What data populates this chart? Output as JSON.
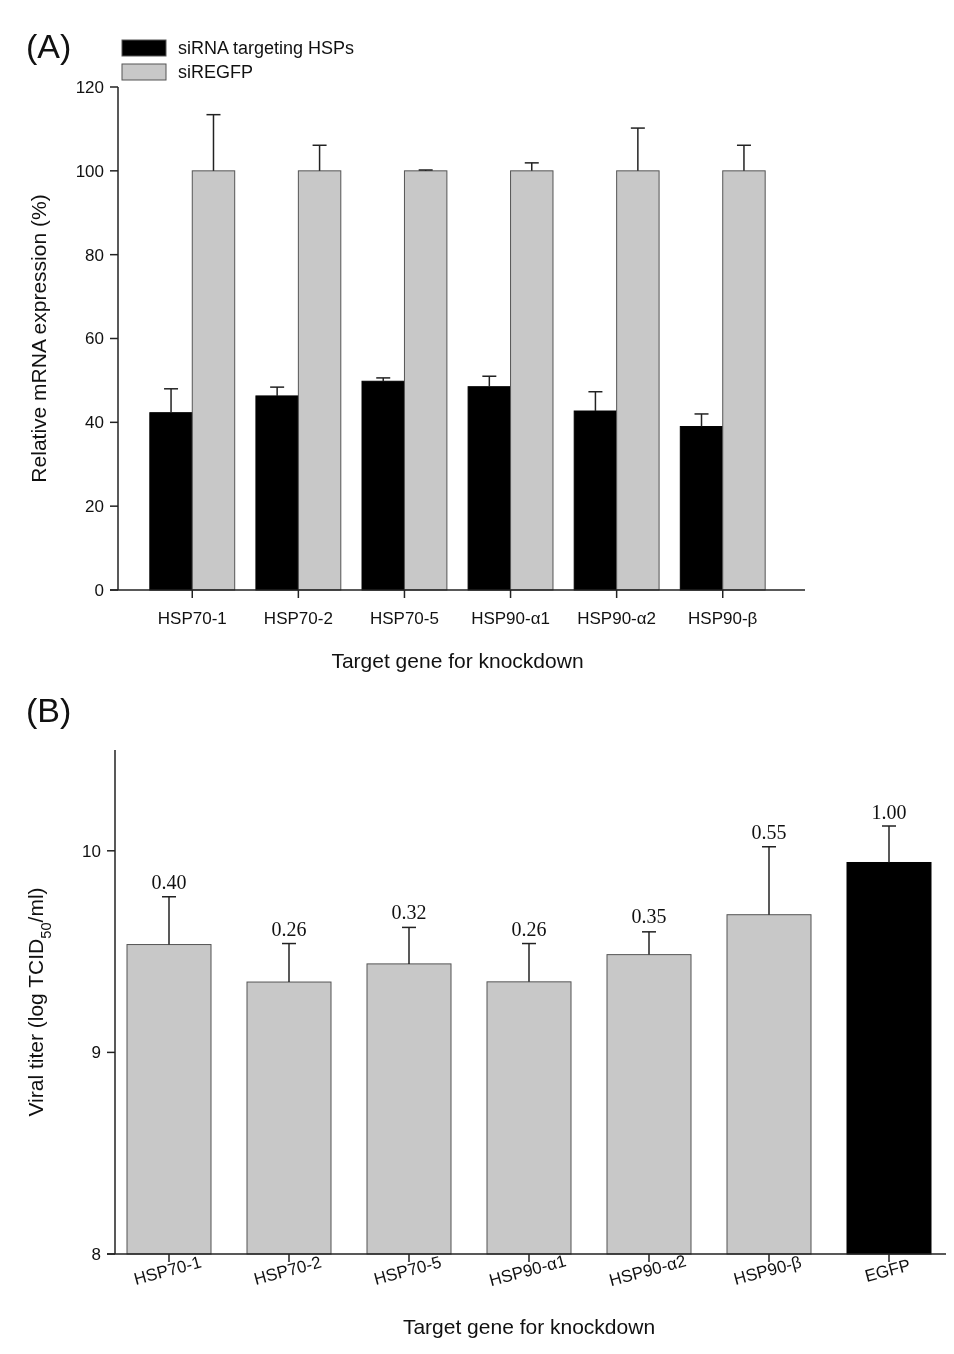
{
  "chart_data": [
    {
      "type": "bar",
      "title": "(A)",
      "xlabel": "Target gene for knockdown",
      "ylabel": "Relative mRNA expression (%)",
      "categories": [
        "HSP70-1",
        "HSP70-2",
        "HSP70-5",
        "HSP90-α1",
        "HSP90-α2",
        "HSP90-β"
      ],
      "series": [
        {
          "name": "siRNA targeting HSPs",
          "color": "#000000",
          "values": [
            42.3,
            46.3,
            49.8,
            48.5,
            42.7,
            39.0
          ],
          "errors": [
            [
              42.3,
              48.0
            ],
            [
              46.3,
              48.4
            ],
            [
              49.8,
              50.6
            ],
            [
              48.5,
              51.0
            ],
            [
              42.7,
              47.3
            ],
            [
              39.0,
              42.0
            ]
          ]
        },
        {
          "name": "siREGFP",
          "color": "#c8c8c8",
          "values": [
            100,
            100,
            100,
            100,
            100,
            100
          ],
          "errors": [
            [
              100,
              113.4
            ],
            [
              100,
              106.1
            ],
            [
              100,
              100.2
            ],
            [
              100,
              101.9
            ],
            [
              100,
              110.2
            ],
            [
              100,
              106.1
            ]
          ]
        }
      ],
      "ylim": [
        0,
        120
      ],
      "yticks": [
        0,
        20,
        40,
        60,
        80,
        100,
        120
      ],
      "legend": "top left"
    },
    {
      "type": "bar",
      "title": "(B)",
      "xlabel": "Target gene for knockdown",
      "ylabel": "Viral titer (log TCID$_{50}$/ml)",
      "categories": [
        "HSP70-1",
        "HSP70-2",
        "HSP70-5",
        "HSP90-α1",
        "HSP90-α2",
        "HSP90-β",
        "EGFP"
      ],
      "values": [
        9.535,
        9.349,
        9.439,
        9.35,
        9.485,
        9.683,
        9.942
      ],
      "colors": [
        "#c8c8c8",
        "#c8c8c8",
        "#c8c8c8",
        "#c8c8c8",
        "#c8c8c8",
        "#c8c8c8",
        "#000000"
      ],
      "errors": [
        [
          9.535,
          9.772
        ],
        [
          9.349,
          9.54
        ],
        [
          9.439,
          9.62
        ],
        [
          9.35,
          9.54
        ],
        [
          9.485,
          9.598
        ],
        [
          9.683,
          10.02
        ],
        [
          9.942,
          10.123
        ]
      ],
      "annotations": [
        {
          "text": "0.40",
          "x": "HSP70-1",
          "y": 9.77
        },
        {
          "text": "0.26",
          "x": "HSP70-2",
          "y": 9.54
        },
        {
          "text": "0.32",
          "x": "HSP70-5",
          "y": 9.62
        },
        {
          "text": "0.26",
          "x": "HSP90-α1",
          "y": 9.54
        },
        {
          "text": "0.35",
          "x": "HSP90-α2",
          "y": 9.6
        },
        {
          "text": "0.55",
          "x": "HSP90-β",
          "y": 10.02
        },
        {
          "text": "1.00",
          "x": "EGFP",
          "y": 10.12
        }
      ],
      "ylim": [
        8,
        10.5
      ],
      "yticks": [
        8,
        9,
        10
      ]
    }
  ]
}
